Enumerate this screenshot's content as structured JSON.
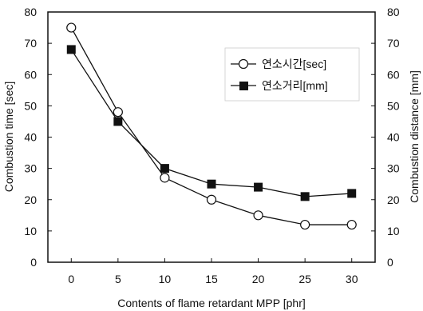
{
  "chart_data": {
    "type": "line",
    "title": "",
    "xlabel": "Contents of flame retardant MPP [phr]",
    "ylabel": "Combustion time [sec]",
    "y2label": "Combustion distance [mm]",
    "x": [
      0,
      5,
      10,
      15,
      20,
      25,
      30
    ],
    "x_ticks": [
      "0",
      "5",
      "10",
      "15",
      "20",
      "25",
      "30"
    ],
    "xlim": [
      -2.5,
      32.5
    ],
    "ylim": [
      0,
      80
    ],
    "y_ticks": [
      "0",
      "10",
      "20",
      "30",
      "40",
      "50",
      "60",
      "70",
      "80"
    ],
    "y2lim": [
      0,
      80
    ],
    "y2_ticks": [
      "0",
      "10",
      "20",
      "30",
      "40",
      "50",
      "60",
      "70",
      "80"
    ],
    "grid": false,
    "legend": "top-right",
    "series": [
      {
        "name": "연소시간[sec]",
        "axis": "left",
        "marker": "open-circle",
        "values": [
          75,
          48,
          27,
          20,
          15,
          12,
          12
        ]
      },
      {
        "name": "연소거리[mm]",
        "axis": "right",
        "marker": "filled-square",
        "values": [
          68,
          45,
          30,
          25,
          24,
          21,
          22
        ]
      }
    ]
  }
}
